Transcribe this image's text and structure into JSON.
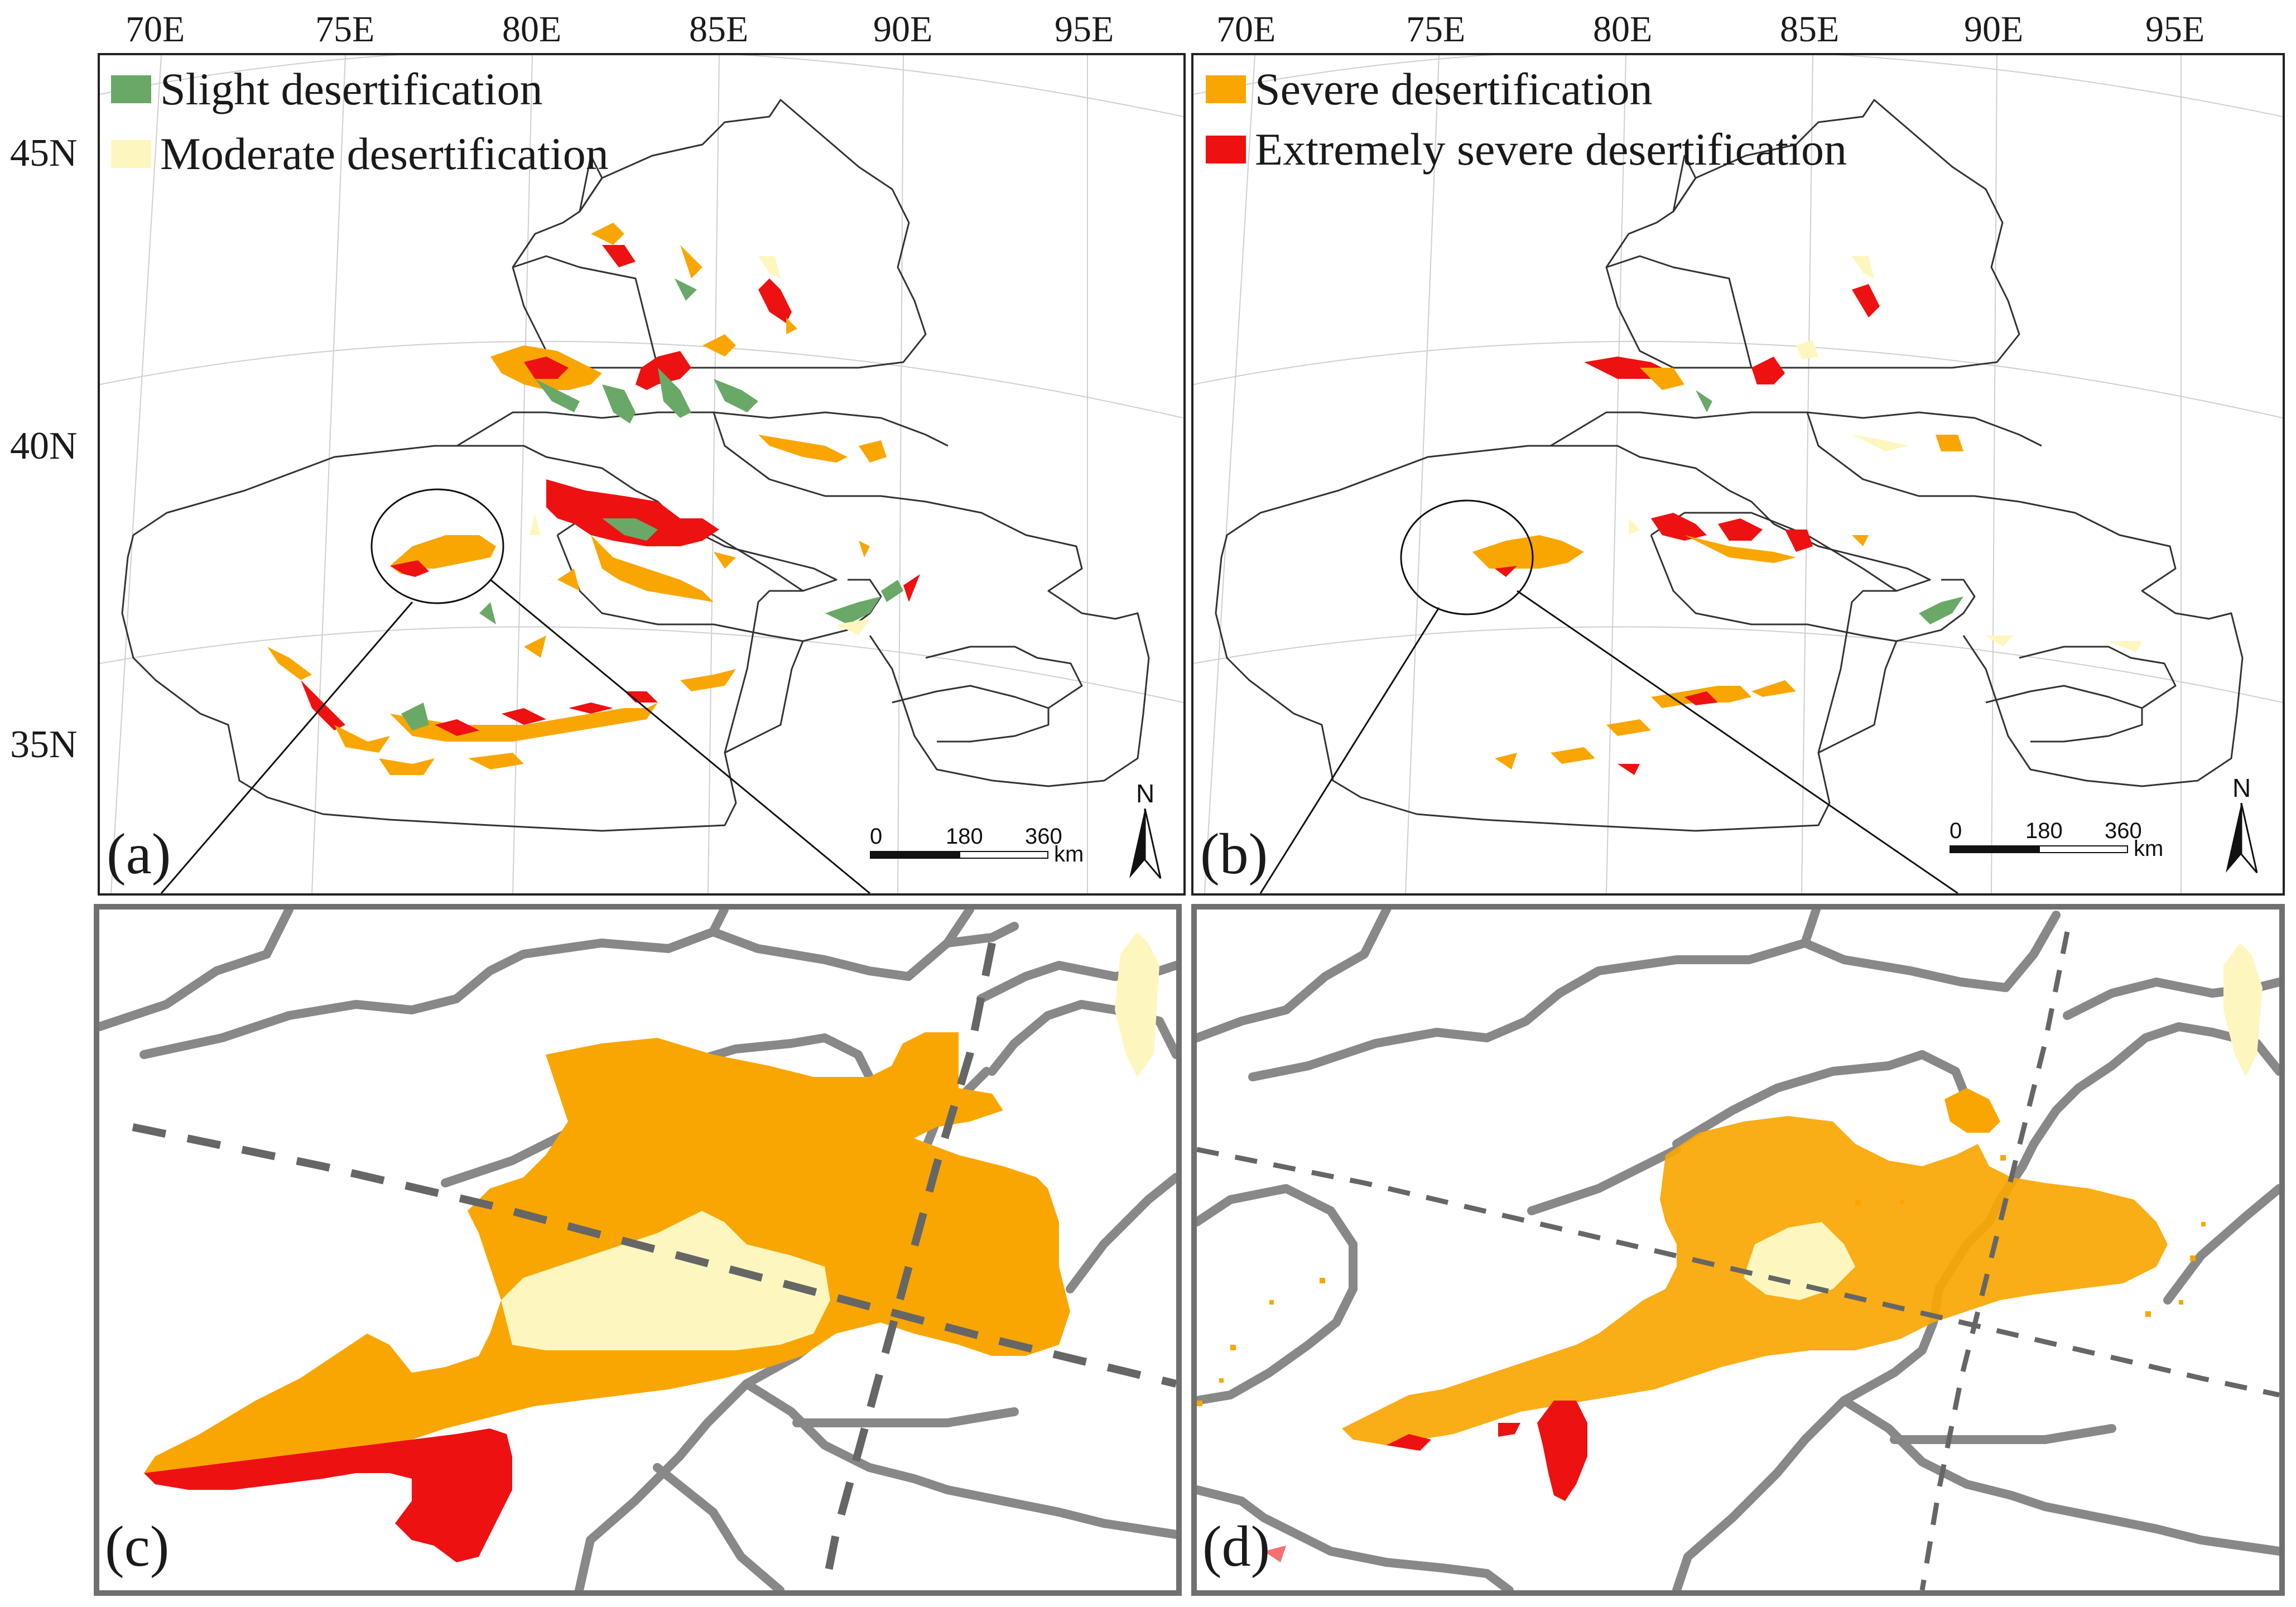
{
  "lon_labels": [
    "70E",
    "75E",
    "80E",
    "85E",
    "90E",
    "95E"
  ],
  "lat_labels": [
    "45N",
    "40N",
    "35N"
  ],
  "legend": [
    {
      "label": "Slight desertification",
      "color": "#6aa868"
    },
    {
      "label": "Moderate desertification",
      "color": "#fdf7bf"
    },
    {
      "label": "Severe desertification",
      "color": "#f9a602"
    },
    {
      "label": "Extremely severe desertification",
      "color": "#ee1111"
    }
  ],
  "panel_labels": [
    "(a)",
    "(b)",
    "(c)",
    "(d)"
  ],
  "scale": {
    "ticks": [
      "0",
      "180",
      "360"
    ],
    "unit": "km"
  },
  "north_label": "N",
  "colors": {
    "boundary": "#333333",
    "grid": "#cfcfcf",
    "zoom_border": "#707070",
    "zoom_line": "#888888"
  }
}
